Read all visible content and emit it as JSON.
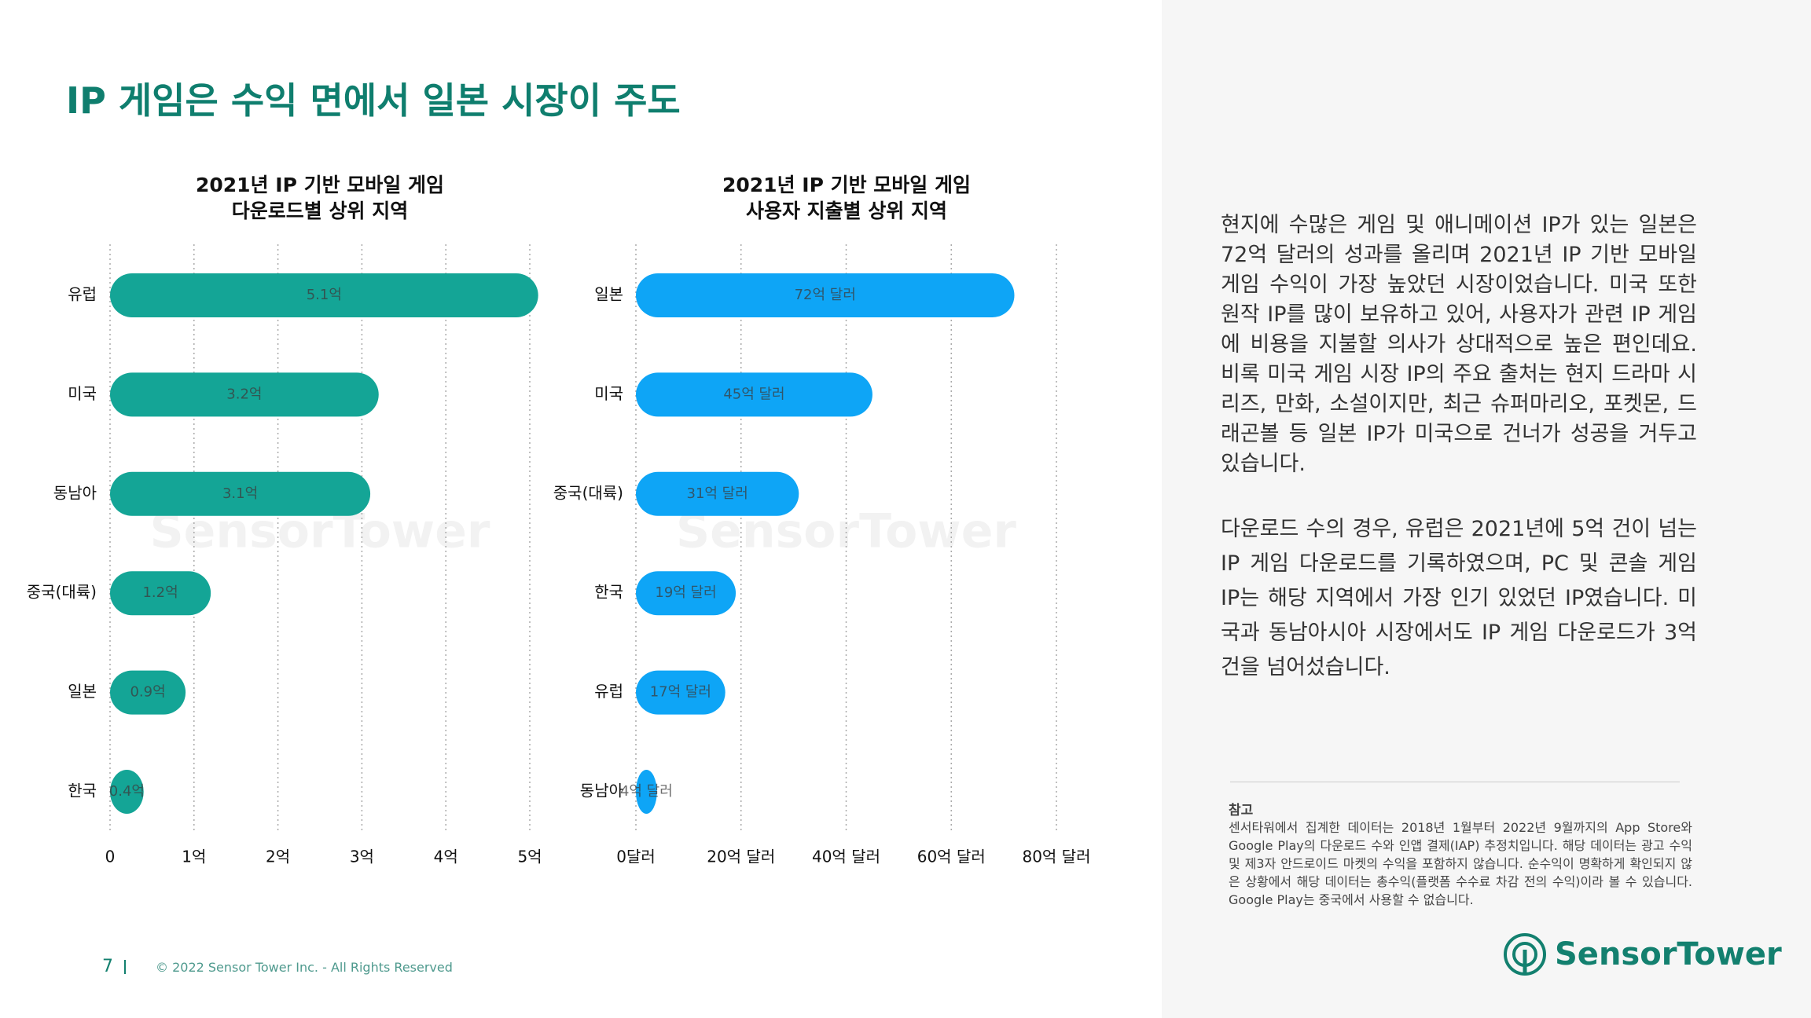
{
  "page": {
    "title": "IP 게임은 수익 면에서 일본 시장이 주도",
    "paragraphs": [
      "현지에 수많은 게임 및 애니메이션 IP가 있는 일본은 72억 달러의 성과를 올리며 2021년 IP 기반 모바일 게임 수익이 가장 높았던 시장이었습니다. 미국 또한 원작 IP를 많이 보유하고 있어, 사용자가 관련 IP 게임에 비용을 지불할 의사가 상대적으로 높은 편인데요. 비록 미국 게임 시장 IP의 주요 출처는 현지 드라마 시리즈, 만화, 소설이지만, 최근 슈퍼마리오, 포켓몬, 드래곤볼 등 일본 IP가 미국으로 건너가 성공을 거두고 있습니다.",
      "다운로드 수의 경우, 유럽은 2021년에 5억 건이 넘는 IP 게임 다운로드를 기록하였으며, PC 및 콘솔 게임 IP는 해당 지역에서 가장 인기 있었던 IP였습니다. 미국과 동남아시아 시장에서도 IP 게임 다운로드가 3억건을 넘어섰습니다."
    ],
    "note_title": "참고",
    "note_text": "센서타워에서 집계한 데이터는 2018년 1월부터 2022년 9월까지의 App Store와 Google Play의 다운로드 수와 인앱 결제(IAP) 추정치입니다. 해당 데이터는 광고 수익 및 제3자 안드로이드 마켓의 수익을 포함하지 않습니다. 순수익이 명확하게 확인되지 않은 상황에서 해당 데이터는 총수익(플랫폼 수수료 차감 전의 수익)이라 볼 수 있습니다. Google Play는 중국에서 사용할 수 없습니다.",
    "page_number": "7",
    "copyright": "© 2022 Sensor Tower Inc. - All Rights Reserved",
    "logo": "SensorTower",
    "watermark": "SensorTower"
  },
  "chart_data": [
    {
      "type": "bar",
      "orientation": "horizontal",
      "title": [
        "2021년 IP 기반 모바일 게임",
        "다운로드별 상위 지역"
      ],
      "categories": [
        "유럽",
        "미국",
        "동남아",
        "중국(대륙)",
        "일본",
        "한국"
      ],
      "values": [
        5.1,
        3.2,
        3.1,
        1.2,
        0.9,
        0.4
      ],
      "value_labels": [
        "5.1억",
        "3.2억",
        "3.1억",
        "1.2억",
        "0.9억",
        "0.4억"
      ],
      "color": "#14a596",
      "xlim": [
        0,
        5
      ],
      "xticks": [
        0,
        {
          "value": 1,
          "label": "1억"
        },
        {
          "value": 2,
          "label": "2억"
        },
        {
          "value": 3,
          "label": "3억"
        },
        {
          "value": 4,
          "label": "4억"
        },
        {
          "value": 5,
          "label": "5억"
        }
      ],
      "grid": true
    },
    {
      "type": "bar",
      "orientation": "horizontal",
      "title": [
        "2021년 IP 기반 모바일 게임",
        "사용자 지출별 상위 지역"
      ],
      "categories": [
        "일본",
        "미국",
        "중국(대륙)",
        "한국",
        "유럽",
        "동남아"
      ],
      "values": [
        72,
        45,
        31,
        19,
        17,
        4
      ],
      "value_labels": [
        "72억 달러",
        "45억 달러",
        "31억 달러",
        "19억 달러",
        "17억 달러",
        "4억 달러"
      ],
      "color": "#0ea5f6",
      "xlim": [
        0,
        80
      ],
      "xticks": [
        {
          "value": 0,
          "label": "0달러"
        },
        {
          "value": 20,
          "label": "20억 달러"
        },
        {
          "value": 40,
          "label": "40억 달러"
        },
        {
          "value": 60,
          "label": "60억 달러"
        },
        {
          "value": 80,
          "label": "80억 달러"
        }
      ],
      "grid": true
    }
  ]
}
